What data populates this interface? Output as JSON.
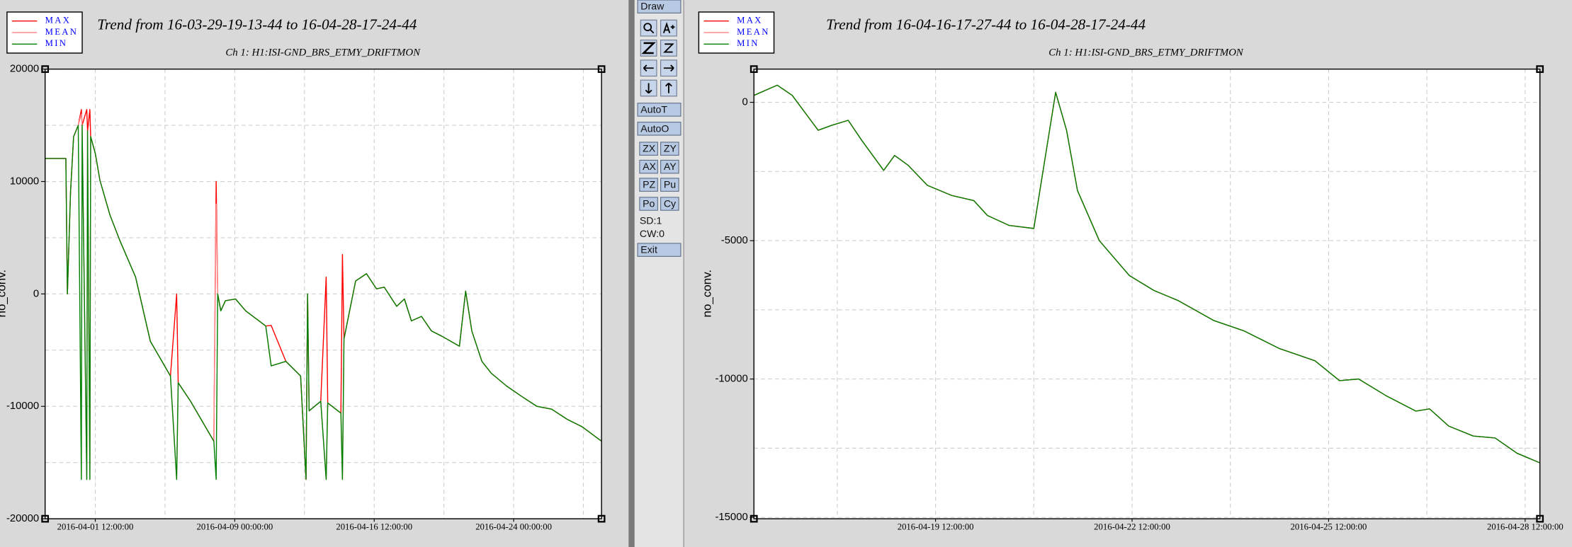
{
  "toolbar": {
    "draw": "Draw",
    "buttons": [
      "AutoT",
      "AutoO",
      "ZX",
      "ZY",
      "AX",
      "AY",
      "PZ",
      "Pu",
      "Po",
      "Cy"
    ],
    "status": [
      "SD:1",
      "CW:0"
    ],
    "exit": "Exit"
  },
  "chart_data": [
    {
      "type": "line",
      "title": "Trend from 16-03-29-19-13-44 to 16-04-28-17-24-44",
      "subtitle": "Ch 1: H1:ISI-GND_BRS_ETMY_DRIFTMON",
      "y_label": "no_conv.",
      "legend": "top-left",
      "grid": true,
      "xlim": [
        "2016-03-29 19:13:44",
        "2016-04-28 17:24:44"
      ],
      "xticks": [
        "2016-04-01 12:00:00",
        "2016-04-09 00:00:00",
        "2016-04-16 12:00:00",
        "2016-04-24 00:00:00"
      ],
      "minor_xticks": [
        "2016-04-05 06:00:00",
        "2016-04-12 18:00:00",
        "2016-04-20 06:00:00",
        "2016-04-27 18:00:00"
      ],
      "ylim": [
        -20000,
        20000
      ],
      "yticks": [
        -20000,
        -10000,
        0,
        10000,
        20000
      ],
      "minor_yticks": [
        -15000,
        -5000,
        5000,
        15000
      ],
      "x": [
        "2016-03-29 19:13:44",
        "2016-03-30 22:00:00",
        "2016-03-31 00:00:00",
        "2016-03-31 04:00:00",
        "2016-03-31 08:00:00",
        "2016-03-31 14:00:00",
        "2016-03-31 18:00:00",
        "2016-03-31 19:00:00",
        "2016-04-01 01:00:00",
        "2016-04-01 02:00:00",
        "2016-04-01 05:00:00",
        "2016-04-01 06:00:00",
        "2016-04-01 12:00:00",
        "2016-04-01 18:00:00",
        "2016-04-02 07:00:00",
        "2016-04-02 20:00:00",
        "2016-04-03 16:00:00",
        "2016-04-04 11:00:00",
        "2016-04-05 13:00:00",
        "2016-04-05 21:00:00",
        "2016-04-05 23:00:00",
        "2016-04-06 15:00:00",
        "2016-04-07 21:00:00",
        "2016-04-08 00:00:00",
        "2016-04-08 02:00:00",
        "2016-04-08 06:00:00",
        "2016-04-08 12:00:00",
        "2016-04-09 01:00:00",
        "2016-04-09 14:00:00",
        "2016-04-10 16:00:00",
        "2016-04-10 23:00:00",
        "2016-04-11 18:00:00",
        "2016-04-12 13:00:00",
        "2016-04-12 20:00:00",
        "2016-04-12 22:00:00",
        "2016-04-13 00:00:00",
        "2016-04-13 15:00:00",
        "2016-04-13 22:00:00",
        "2016-04-14 00:00:00",
        "2016-04-14 17:00:00",
        "2016-04-14 19:00:00",
        "2016-04-14 21:00:00",
        "2016-04-15 12:00:00",
        "2016-04-16 02:00:00",
        "2016-04-16 15:00:00",
        "2016-04-17 01:00:00",
        "2016-04-17 17:00:00",
        "2016-04-18 03:00:00",
        "2016-04-18 12:00:00",
        "2016-04-19 01:00:00",
        "2016-04-19 14:00:00",
        "2016-04-20 03:00:00",
        "2016-04-21 02:00:00",
        "2016-04-21 10:00:00",
        "2016-04-21 18:00:00",
        "2016-04-22 07:00:00",
        "2016-04-22 19:00:00",
        "2016-04-23 15:00:00",
        "2016-04-24 10:00:00",
        "2016-04-25 06:00:00",
        "2016-04-26 01:00:00",
        "2016-04-26 21:00:00",
        "2016-04-27 16:00:00",
        "2016-04-28 17:24:44"
      ],
      "series": [
        {
          "name": "MAX",
          "color": "#ff0000",
          "values": [
            12050,
            12050,
            0,
            9000,
            14000,
            15000,
            16400,
            15000,
            16400,
            14500,
            16400,
            14000,
            12500,
            10100,
            7000,
            4700,
            1500,
            -4200,
            -7300,
            0,
            -7900,
            -9550,
            -13100,
            10000,
            0,
            -1500,
            -600,
            -450,
            -1500,
            -2850,
            -2800,
            -6000,
            -7300,
            -16500,
            0,
            -10400,
            -9550,
            1500,
            -9700,
            -10600,
            3500,
            -4000,
            1150,
            1800,
            450,
            600,
            -1100,
            -450,
            -2400,
            -2000,
            -3300,
            -3750,
            -4650,
            250,
            -3300,
            -6000,
            -7050,
            -8200,
            -9100,
            -10000,
            -10250,
            -11150,
            -11800,
            -13100
          ]
        },
        {
          "name": "MEAN",
          "color": "#ff8c8c",
          "values": [
            12050,
            12050,
            0,
            9000,
            14000,
            15000,
            16000,
            15000,
            -16500,
            14500,
            -16500,
            14000,
            12500,
            10100,
            7000,
            4700,
            1500,
            -4200,
            -7300,
            -16500,
            -7900,
            -9550,
            -13100,
            8000,
            0,
            -1500,
            -600,
            -450,
            -1500,
            -2850,
            -6400,
            -6000,
            -7300,
            -16500,
            0,
            -10400,
            -9550,
            -16500,
            -9700,
            -10600,
            -16500,
            -4000,
            1150,
            1800,
            450,
            600,
            -1100,
            -450,
            -2400,
            -2000,
            -3300,
            -3750,
            -4650,
            250,
            -3300,
            -6000,
            -7050,
            -8200,
            -9100,
            -10000,
            -10250,
            -11150,
            -11800,
            -13100
          ]
        },
        {
          "name": "MIN",
          "color": "#008000",
          "values": [
            12050,
            12050,
            0,
            9000,
            14000,
            15000,
            -16500,
            15000,
            -16500,
            14500,
            -16500,
            14000,
            12500,
            10100,
            7000,
            4700,
            1500,
            -4200,
            -7300,
            -16500,
            -7900,
            -9550,
            -13100,
            -16500,
            0,
            -1500,
            -600,
            -450,
            -1500,
            -2850,
            -6400,
            -6000,
            -7300,
            -16500,
            0,
            -10400,
            -9550,
            -16500,
            -9700,
            -10600,
            -16500,
            -4000,
            1150,
            1800,
            450,
            600,
            -1100,
            -450,
            -2400,
            -2000,
            -3300,
            -3750,
            -4650,
            250,
            -3300,
            -6000,
            -7050,
            -8200,
            -9100,
            -10000,
            -10250,
            -11150,
            -11800,
            -13100
          ]
        }
      ]
    },
    {
      "type": "line",
      "title": "Trend from 16-04-16-17-27-44 to 16-04-28-17-24-44",
      "subtitle": "Ch 1: H1:ISI-GND_BRS_ETMY_DRIFTMON",
      "y_label": "no_conv.",
      "legend": "top-left",
      "grid": true,
      "xlim": [
        "2016-04-16 17:27:44",
        "2016-04-28 17:24:44"
      ],
      "xticks": [
        "2016-04-19 12:00:00",
        "2016-04-22 12:00:00",
        "2016-04-25 12:00:00",
        "2016-04-28 12:00:00"
      ],
      "minor_xticks": [
        "2016-04-18 00:00:00",
        "2016-04-21 00:00:00",
        "2016-04-24 00:00:00",
        "2016-04-27 00:00:00"
      ],
      "ylim": [
        -15050,
        1200
      ],
      "yticks": [
        -15000,
        -10000,
        -5000,
        0
      ],
      "minor_yticks": [
        -12500,
        -7500,
        -2500
      ],
      "x": [
        "2016-04-16 17:27:44",
        "2016-04-17 02:00:00",
        "2016-04-17 07:30:00",
        "2016-04-17 17:00:00",
        "2016-04-17 22:00:00",
        "2016-04-18 04:00:00",
        "2016-04-18 09:00:00",
        "2016-04-18 17:00:00",
        "2016-04-18 21:00:00",
        "2016-04-19 02:00:00",
        "2016-04-19 09:00:00",
        "2016-04-19 18:00:00",
        "2016-04-20 02:00:00",
        "2016-04-20 07:00:00",
        "2016-04-20 15:00:00",
        "2016-04-21 00:00:00",
        "2016-04-21 04:00:00",
        "2016-04-21 08:00:00",
        "2016-04-21 12:00:00",
        "2016-04-21 16:00:00",
        "2016-04-22 00:00:00",
        "2016-04-22 11:00:00",
        "2016-04-22 20:00:00",
        "2016-04-23 05:00:00",
        "2016-04-23 18:00:00",
        "2016-04-24 05:00:00",
        "2016-04-24 18:00:00",
        "2016-04-25 07:00:00",
        "2016-04-25 16:00:00",
        "2016-04-25 23:00:00",
        "2016-04-26 09:00:00",
        "2016-04-26 20:00:00",
        "2016-04-27 01:00:00",
        "2016-04-27 08:00:00",
        "2016-04-27 17:00:00",
        "2016-04-28 01:00:00",
        "2016-04-28 09:00:00",
        "2016-04-28 17:24:44"
      ],
      "series": [
        {
          "name": "MAX",
          "color": "#ff0000",
          "values": [
            250,
            620,
            250,
            -1010,
            -830,
            -650,
            -1380,
            -2460,
            -1920,
            -2280,
            -3000,
            -3370,
            -3550,
            -4090,
            -4450,
            -4560,
            -2100,
            360,
            -1010,
            -3190,
            -5000,
            -6260,
            -6800,
            -7170,
            -7890,
            -8260,
            -8900,
            -9340,
            -10060,
            -10000,
            -10600,
            -11160,
            -11080,
            -11700,
            -12060,
            -12130,
            -12680,
            -13030
          ]
        },
        {
          "name": "MEAN",
          "color": "#ff8c8c",
          "values": [
            250,
            620,
            250,
            -1010,
            -830,
            -650,
            -1380,
            -2460,
            -1920,
            -2280,
            -3000,
            -3370,
            -3550,
            -4090,
            -4450,
            -4560,
            -2100,
            360,
            -1010,
            -3190,
            -5000,
            -6260,
            -6800,
            -7170,
            -7890,
            -8260,
            -8900,
            -9340,
            -10060,
            -10000,
            -10600,
            -11160,
            -11080,
            -11700,
            -12060,
            -12130,
            -12680,
            -13030
          ]
        },
        {
          "name": "MIN",
          "color": "#008000",
          "values": [
            250,
            620,
            250,
            -1010,
            -830,
            -650,
            -1380,
            -2460,
            -1920,
            -2280,
            -3000,
            -3370,
            -3550,
            -4090,
            -4450,
            -4560,
            -2100,
            360,
            -1010,
            -3190,
            -5000,
            -6260,
            -6800,
            -7170,
            -7890,
            -8260,
            -8900,
            -9340,
            -10060,
            -10000,
            -10600,
            -11160,
            -11080,
            -11700,
            -12060,
            -12130,
            -12680,
            -13030
          ]
        }
      ]
    }
  ]
}
